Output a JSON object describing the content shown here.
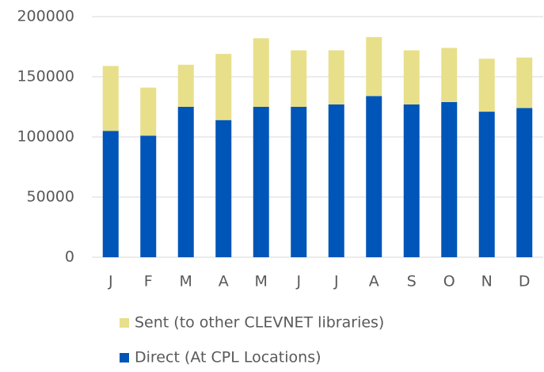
{
  "chart_data": {
    "type": "stacked_bar",
    "categories": [
      "J",
      "F",
      "M",
      "A",
      "M",
      "J",
      "J",
      "A",
      "S",
      "O",
      "N",
      "D"
    ],
    "series": [
      {
        "name": "Direct (At CPL Locations)",
        "color": "#0055b8",
        "values": [
          105000,
          101000,
          125000,
          114000,
          125000,
          125000,
          127000,
          134000,
          127000,
          129000,
          121000,
          124000
        ]
      },
      {
        "name": "Sent (to other CLEVNET libraries)",
        "color": "#e8df8a",
        "values": [
          54000,
          40000,
          35000,
          55000,
          57000,
          47000,
          45000,
          49000,
          45000,
          45000,
          44000,
          42000
        ]
      }
    ],
    "ylim": [
      0,
      200000
    ],
    "yticks": [
      0,
      50000,
      100000,
      150000,
      200000
    ],
    "grid": true
  }
}
